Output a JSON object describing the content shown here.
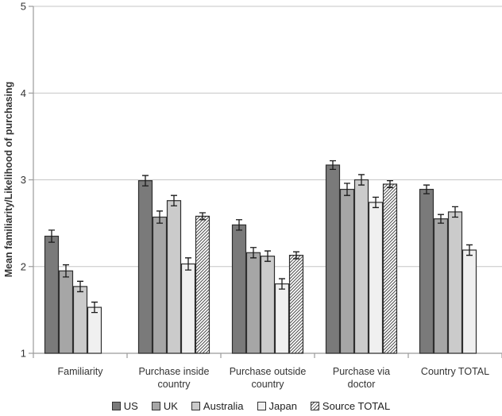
{
  "chart_data": {
    "type": "bar",
    "title": "",
    "xlabel": "",
    "ylabel": "Mean familiarity/Likelihood of purchasing",
    "ylim": [
      1,
      5
    ],
    "yticks": [
      1,
      2,
      3,
      4,
      5
    ],
    "grid": true,
    "legend_position": "bottom",
    "error_bars": true,
    "categories": [
      "Familiarity",
      "Purchase inside country",
      "Purchase outside country",
      "Purchase via doctor",
      "Country TOTAL"
    ],
    "category_label_lines": [
      [
        "Familiarity"
      ],
      [
        "Purchase inside",
        "country"
      ],
      [
        "Purchase outside",
        "country"
      ],
      [
        "Purchase via",
        "doctor"
      ],
      [
        "Country TOTAL"
      ]
    ],
    "series": [
      {
        "name": "US",
        "color": "#7a7a7a",
        "pattern": "solid",
        "values": [
          2.35,
          2.99,
          2.48,
          3.17,
          2.89
        ],
        "errors": [
          0.07,
          0.06,
          0.06,
          0.05,
          0.05
        ]
      },
      {
        "name": "UK",
        "color": "#a6a6a6",
        "pattern": "solid",
        "values": [
          1.95,
          2.57,
          2.16,
          2.89,
          2.55
        ],
        "errors": [
          0.07,
          0.07,
          0.06,
          0.07,
          0.05
        ]
      },
      {
        "name": "Australia",
        "color": "#cbcbcb",
        "pattern": "solid",
        "values": [
          1.77,
          2.76,
          2.12,
          3.0,
          2.63
        ],
        "errors": [
          0.06,
          0.06,
          0.06,
          0.06,
          0.06
        ]
      },
      {
        "name": "Japan",
        "color": "#f0f0f0",
        "pattern": "solid",
        "values": [
          1.53,
          2.03,
          1.8,
          2.74,
          2.19
        ],
        "errors": [
          0.06,
          0.07,
          0.06,
          0.06,
          0.06
        ]
      },
      {
        "name": "Source TOTAL",
        "color": "#ffffff",
        "pattern": "diagonal-hatch",
        "values": [
          null,
          2.58,
          2.13,
          2.95,
          null
        ],
        "errors": [
          null,
          0.04,
          0.04,
          0.04,
          null
        ]
      }
    ],
    "colors": {
      "background": "#ffffff",
      "gridline": "#c6c6c6",
      "axis": "#9b9b9b",
      "bar_border": "#2e2e2e",
      "error_bar": "#1a1a1a",
      "hatch_line": "#4d4d4d",
      "text": "#333333"
    }
  }
}
